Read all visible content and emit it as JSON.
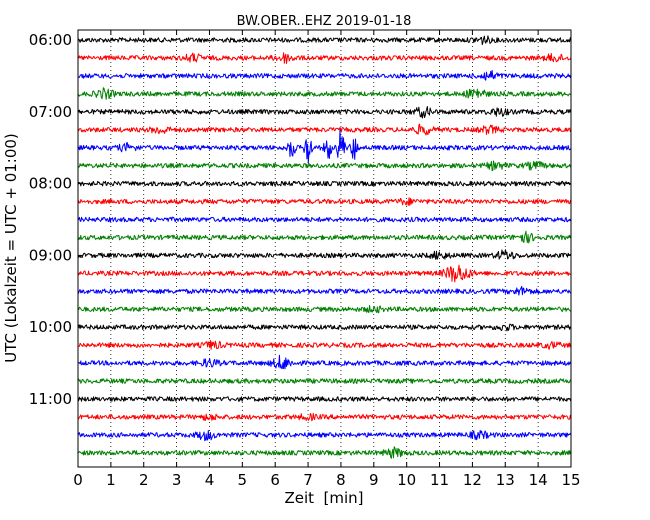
{
  "chart_data": {
    "type": "line",
    "title": "BW.OBER..EHZ 2019-01-18",
    "xlabel": "Zeit  [min]",
    "ylabel": "UTC (Lokalzeit = UTC + 01:00)",
    "xlim": [
      0,
      15
    ],
    "x_ticks": [
      "0",
      "1",
      "2",
      "3",
      "4",
      "5",
      "6",
      "7",
      "8",
      "9",
      "10",
      "11",
      "12",
      "13",
      "14",
      "15"
    ],
    "y_ticks": [
      "06:00",
      "07:00",
      "08:00",
      "09:00",
      "10:00",
      "11:00"
    ],
    "grid": "vertical dotted lines at each minute",
    "trace_interval_minutes": 15,
    "start_time": "06:00",
    "trace_colors": [
      "#000000",
      "#ff0000",
      "#0000ff",
      "#008000"
    ],
    "series": [
      {
        "start": "06:00",
        "color": "#000000",
        "bursts": [
          {
            "t": 12.3,
            "a": 3
          }
        ]
      },
      {
        "start": "06:15",
        "color": "#ff0000",
        "bursts": [
          {
            "t": 3.5,
            "a": 3
          },
          {
            "t": 6.3,
            "a": 4
          },
          {
            "t": 14.5,
            "a": 3
          }
        ]
      },
      {
        "start": "06:30",
        "color": "#0000ff",
        "bursts": [
          {
            "t": 12.5,
            "a": 4
          }
        ]
      },
      {
        "start": "06:45",
        "color": "#008000",
        "bursts": [
          {
            "t": 0.8,
            "a": 4
          },
          {
            "t": 12.1,
            "a": 5
          }
        ]
      },
      {
        "start": "07:00",
        "color": "#000000",
        "bursts": [
          {
            "t": 10.5,
            "a": 4
          },
          {
            "t": 12.8,
            "a": 3
          }
        ]
      },
      {
        "start": "07:15",
        "color": "#ff0000",
        "bursts": [
          {
            "t": 2.5,
            "a": 3
          },
          {
            "t": 10.5,
            "a": 4
          },
          {
            "t": 12.5,
            "a": 3
          }
        ]
      },
      {
        "start": "07:30",
        "color": "#0000ff",
        "bursts": [
          {
            "t": 1.5,
            "a": 3
          },
          {
            "t": 6.5,
            "a": 12
          },
          {
            "t": 7.0,
            "a": 20
          },
          {
            "t": 7.6,
            "a": 13
          },
          {
            "t": 8.0,
            "a": 22
          },
          {
            "t": 8.4,
            "a": 12
          }
        ]
      },
      {
        "start": "07:45",
        "color": "#008000",
        "bursts": [
          {
            "t": 12.7,
            "a": 3
          },
          {
            "t": 13.9,
            "a": 3
          }
        ]
      },
      {
        "start": "08:00",
        "color": "#000000",
        "bursts": []
      },
      {
        "start": "08:15",
        "color": "#ff0000",
        "bursts": [
          {
            "t": 10.0,
            "a": 2
          }
        ]
      },
      {
        "start": "08:30",
        "color": "#0000ff",
        "bursts": []
      },
      {
        "start": "08:45",
        "color": "#008000",
        "bursts": [
          {
            "t": 13.6,
            "a": 4
          }
        ]
      },
      {
        "start": "09:00",
        "color": "#000000",
        "bursts": [
          {
            "t": 11.0,
            "a": 3
          },
          {
            "t": 13.0,
            "a": 4
          }
        ]
      },
      {
        "start": "09:15",
        "color": "#ff0000",
        "bursts": [
          {
            "t": 11.4,
            "a": 6
          },
          {
            "t": 11.7,
            "a": 5
          }
        ]
      },
      {
        "start": "09:30",
        "color": "#0000ff",
        "bursts": [
          {
            "t": 13.5,
            "a": 3
          }
        ]
      },
      {
        "start": "09:45",
        "color": "#008000",
        "bursts": [
          {
            "t": 9.0,
            "a": 2
          }
        ]
      },
      {
        "start": "10:00",
        "color": "#000000",
        "bursts": [
          {
            "t": 13.0,
            "a": 2
          }
        ]
      },
      {
        "start": "10:15",
        "color": "#ff0000",
        "bursts": [
          {
            "t": 4.1,
            "a": 3
          },
          {
            "t": 14.4,
            "a": 2
          }
        ]
      },
      {
        "start": "10:30",
        "color": "#0000ff",
        "bursts": [
          {
            "t": 4.0,
            "a": 3
          },
          {
            "t": 6.2,
            "a": 6
          }
        ]
      },
      {
        "start": "10:45",
        "color": "#008000",
        "bursts": []
      },
      {
        "start": "11:00",
        "color": "#000000",
        "bursts": []
      },
      {
        "start": "11:15",
        "color": "#ff0000",
        "bursts": [
          {
            "t": 4.0,
            "a": 2
          },
          {
            "t": 7.0,
            "a": 2
          }
        ]
      },
      {
        "start": "11:30",
        "color": "#0000ff",
        "bursts": [
          {
            "t": 3.9,
            "a": 4
          },
          {
            "t": 12.2,
            "a": 3
          }
        ]
      },
      {
        "start": "11:45",
        "color": "#008000",
        "bursts": [
          {
            "t": 9.6,
            "a": 4
          }
        ]
      }
    ]
  }
}
